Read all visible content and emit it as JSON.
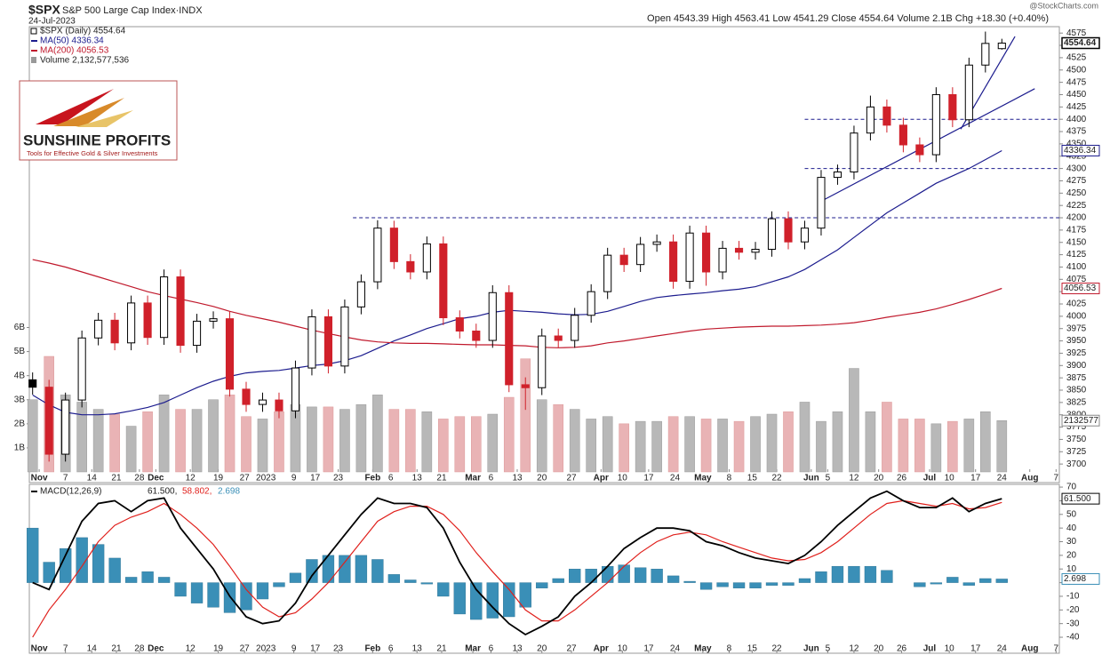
{
  "chart_data": [
    {
      "type": "candlestick",
      "title": "$SPX",
      "subtitle": "S&P 500 Large Cap Index·INDX",
      "date": "24-Jul-2023",
      "source": "@StockCharts.com",
      "quote": "Open 4543.39  High 4563.41  Low 4541.29  Close 4554.64  Volume 2.1B  Chg +18.30 (+0.40%)",
      "price_name": "$SPX (Daily) 4554.64",
      "logo": {
        "title": "SUNSHINE PROFITS",
        "tagline": "Tools for Effective Gold & Silver Investments"
      },
      "open": [
        3871,
        3856,
        3720,
        3830,
        3956,
        3992,
        3946,
        4027,
        3957,
        4080,
        3941,
        3990,
        3995,
        3852,
        3821,
        3830,
        3808,
        3895,
        3999,
        3899,
        4019,
        4070,
        4179,
        4111,
        4090,
        4147,
        3997,
        3970,
        3951,
        4048,
        3861,
        3855,
        3960,
        3951,
        4002,
        4050,
        4124,
        4105,
        4146,
        4151,
        4071,
        4169,
        4090,
        4138,
        4130,
        4136,
        4198,
        4151,
        4179,
        4282,
        4293,
        4372,
        4425,
        4388,
        4348,
        4328,
        4450,
        4399,
        4510,
        4543.39
      ],
      "high": [
        3886,
        3871,
        3845,
        3971,
        4007,
        4007,
        4042,
        4042,
        4095,
        4095,
        4005,
        4010,
        4010,
        3867,
        3845,
        3845,
        3910,
        4014,
        4014,
        4034,
        4085,
        4195,
        4194,
        4126,
        4162,
        4162,
        4012,
        3985,
        4063,
        4063,
        3876,
        3975,
        3975,
        4017,
        4065,
        4139,
        4139,
        4161,
        4166,
        4166,
        4184,
        4184,
        4153,
        4153,
        4151,
        4213,
        4213,
        4194,
        4297,
        4308,
        4387,
        4448,
        4440,
        4403,
        4363,
        4465,
        4465,
        4525,
        4578,
        4563.41
      ],
      "low": [
        3841,
        3705,
        3705,
        3815,
        3941,
        3931,
        3931,
        3942,
        3942,
        3926,
        3926,
        3975,
        3837,
        3806,
        3806,
        3793,
        3793,
        3880,
        3884,
        3884,
        4004,
        4055,
        4096,
        4075,
        4075,
        3982,
        3955,
        3936,
        3936,
        3846,
        3810,
        3840,
        3936,
        3936,
        3987,
        4035,
        4090,
        4090,
        4131,
        4056,
        4056,
        4062,
        4075,
        4115,
        4115,
        4121,
        4136,
        4136,
        4164,
        4267,
        4278,
        4357,
        4373,
        4333,
        4313,
        4313,
        4384,
        4384,
        4495,
        4541.29
      ],
      "close": [
        3856,
        3720,
        3830,
        3956,
        3992,
        3946,
        4027,
        3957,
        4080,
        3941,
        3990,
        3995,
        3852,
        3821,
        3830,
        3808,
        3895,
        3999,
        3899,
        4019,
        4070,
        4179,
        4111,
        4090,
        4147,
        3997,
        3970,
        3951,
        4048,
        3861,
        3855,
        3960,
        3951,
        4002,
        4050,
        4124,
        4105,
        4146,
        4151,
        4071,
        4169,
        4090,
        4138,
        4130,
        4136,
        4198,
        4151,
        4179,
        4282,
        4293,
        4372,
        4425,
        4388,
        4348,
        4328,
        4450,
        4399,
        4510,
        4554,
        4554.64
      ],
      "series": [
        {
          "name": "MA(50) 4336.34",
          "color": "#1c1c8e",
          "values": [
            3840,
            3820,
            3805,
            3800,
            3800,
            3802,
            3808,
            3815,
            3825,
            3840,
            3855,
            3868,
            3878,
            3885,
            3888,
            3890,
            3895,
            3900,
            3903,
            3910,
            3920,
            3935,
            3950,
            3962,
            3975,
            3985,
            3995,
            4000,
            4008,
            4012,
            4010,
            4008,
            4005,
            4003,
            4004,
            4010,
            4020,
            4030,
            4038,
            4042,
            4045,
            4048,
            4052,
            4055,
            4060,
            4070,
            4080,
            4095,
            4115,
            4135,
            4160,
            4185,
            4210,
            4230,
            4250,
            4270,
            4285,
            4300,
            4318,
            4336.34
          ]
        },
        {
          "name": "MA(200) 4056.53",
          "color": "#c0192c",
          "values": [
            4115,
            4108,
            4100,
            4090,
            4080,
            4070,
            4060,
            4050,
            4042,
            4035,
            4028,
            4020,
            4010,
            4002,
            3995,
            3988,
            3980,
            3972,
            3965,
            3958,
            3952,
            3948,
            3946,
            3945,
            3945,
            3944,
            3943,
            3942,
            3942,
            3941,
            3940,
            3937,
            3936,
            3937,
            3940,
            3946,
            3950,
            3955,
            3960,
            3965,
            3970,
            3974,
            3976,
            3978,
            3979,
            3980,
            3980,
            3981,
            3982,
            3984,
            3987,
            3992,
            3998,
            4003,
            4008,
            4015,
            4024,
            4034,
            4045,
            4056.53
          ]
        },
        {
          "name": "Volume 2,132,577,536",
          "axis": "y2",
          "values": [
            3.0,
            4.8,
            3.2,
            2.9,
            2.6,
            2.4,
            1.9,
            2.5,
            3.2,
            2.6,
            2.6,
            3.0,
            3.2,
            2.3,
            2.2,
            2.5,
            2.8,
            2.7,
            2.7,
            2.6,
            2.8,
            3.2,
            2.6,
            2.6,
            2.5,
            2.2,
            2.3,
            2.3,
            2.4,
            3.1,
            4.7,
            3.0,
            2.8,
            2.6,
            2.2,
            2.3,
            2.0,
            2.1,
            2.1,
            2.3,
            2.3,
            2.2,
            2.2,
            2.1,
            2.3,
            2.4,
            2.5,
            2.9,
            2.1,
            2.5,
            4.3,
            2.5,
            2.9,
            2.2,
            2.2,
            2.0,
            2.1,
            2.2,
            2.5,
            2.132577
          ]
        }
      ],
      "last_value_labels": [
        "4554.64",
        "4336.34",
        "4056.53",
        "2132577"
      ],
      "xlim": [
        -0.2,
        62.5
      ],
      "xticks": [
        {
          "value": 0.4,
          "label": "Nov"
        },
        {
          "value": 2.0,
          "label": "7"
        },
        {
          "value": 3.6,
          "label": "14"
        },
        {
          "value": 5.1,
          "label": "21"
        },
        {
          "value": 6.5,
          "label": "28"
        },
        {
          "value": 7.5,
          "label": "Dec"
        },
        {
          "value": 9.6,
          "label": "12"
        },
        {
          "value": 11.3,
          "label": "19"
        },
        {
          "value": 12.9,
          "label": "27"
        },
        {
          "value": 14.2,
          "label": "2023"
        },
        {
          "value": 15.9,
          "label": "9"
        },
        {
          "value": 17.2,
          "label": "17"
        },
        {
          "value": 18.6,
          "label": "23"
        },
        {
          "value": 20.7,
          "label": "Feb"
        },
        {
          "value": 21.8,
          "label": "6"
        },
        {
          "value": 23.4,
          "label": "13"
        },
        {
          "value": 24.9,
          "label": "21"
        },
        {
          "value": 26.8,
          "label": "Mar"
        },
        {
          "value": 27.9,
          "label": "6"
        },
        {
          "value": 29.5,
          "label": "13"
        },
        {
          "value": 31.0,
          "label": "20"
        },
        {
          "value": 32.8,
          "label": "27"
        },
        {
          "value": 34.6,
          "label": "Apr"
        },
        {
          "value": 35.9,
          "label": "10"
        },
        {
          "value": 37.5,
          "label": "17"
        },
        {
          "value": 39.1,
          "label": "24"
        },
        {
          "value": 40.8,
          "label": "May"
        },
        {
          "value": 42.4,
          "label": "8"
        },
        {
          "value": 43.8,
          "label": "15"
        },
        {
          "value": 45.3,
          "label": "22"
        },
        {
          "value": 47.4,
          "label": "Jun"
        },
        {
          "value": 48.4,
          "label": "5"
        },
        {
          "value": 50.0,
          "label": "12"
        },
        {
          "value": 51.5,
          "label": "20"
        },
        {
          "value": 52.9,
          "label": "26"
        },
        {
          "value": 54.6,
          "label": "Jul"
        },
        {
          "value": 55.8,
          "label": "10"
        },
        {
          "value": 57.4,
          "label": "17"
        },
        {
          "value": 59.0,
          "label": "24"
        },
        {
          "value": 60.7,
          "label": "Aug"
        },
        {
          "value": 62.3,
          "label": "7"
        }
      ],
      "ylim": [
        3684,
        4588
      ],
      "yticks": [
        3700,
        3725,
        3750,
        3775,
        3800,
        3825,
        3850,
        3875,
        3900,
        3925,
        3950,
        3975,
        4000,
        4025,
        4050,
        4075,
        4100,
        4125,
        4150,
        4175,
        4200,
        4225,
        4250,
        4275,
        4300,
        4325,
        4350,
        4375,
        4400,
        4425,
        4450,
        4475,
        4500,
        4525,
        4550,
        4575
      ],
      "y2lim": [
        0,
        18.5
      ],
      "y2ticks": [
        {
          "value": 1,
          "label": "1B"
        },
        {
          "value": 2,
          "label": "2B"
        },
        {
          "value": 3,
          "label": "3B"
        },
        {
          "value": 4,
          "label": "4B"
        },
        {
          "value": 5,
          "label": "5B"
        },
        {
          "value": 6,
          "label": "6B"
        }
      ],
      "hlines": [
        {
          "value": 4200,
          "start": 19.5
        },
        {
          "value": 4300,
          "start": 47.0
        },
        {
          "value": 4400,
          "start": 47.0
        }
      ],
      "trendlines": [
        {
          "x": [
            47.8,
            61.0
          ],
          "y": [
            4230,
            4462
          ]
        },
        {
          "x": [
            56.5,
            59.8
          ],
          "y": [
            4380,
            4568
          ]
        }
      ]
    },
    {
      "type": "macd",
      "title": "MACD(12,26,9)",
      "series": [
        {
          "name": "61.500,",
          "color": "#000000",
          "values": [
            0,
            -5,
            20,
            45,
            58,
            60,
            52,
            60,
            62,
            40,
            25,
            10,
            -10,
            -25,
            -30,
            -28,
            -15,
            5,
            20,
            35,
            50,
            62,
            58,
            58,
            55,
            40,
            15,
            -5,
            -18,
            -30,
            -38,
            -32,
            -25,
            -10,
            0,
            12,
            25,
            33,
            40,
            40,
            38,
            30,
            27,
            22,
            18,
            16,
            14,
            20,
            30,
            42,
            52,
            62,
            67,
            60,
            55,
            55,
            62,
            52,
            58,
            61.5
          ]
        },
        {
          "name": "58.802,",
          "color": "#e0201c",
          "values": [
            -40,
            -20,
            -5,
            12,
            30,
            42,
            48,
            52,
            58,
            50,
            40,
            28,
            12,
            -5,
            -18,
            -25,
            -22,
            -12,
            0,
            15,
            30,
            45,
            52,
            56,
            56,
            50,
            38,
            22,
            8,
            -5,
            -20,
            -28,
            -28,
            -20,
            -10,
            0,
            12,
            22,
            30,
            35,
            37,
            35,
            30,
            26,
            22,
            18,
            16,
            17,
            22,
            30,
            40,
            50,
            58,
            60,
            58,
            56,
            58,
            54,
            55,
            58.802
          ]
        },
        {
          "name": "2.698",
          "color": "#3a8fb7",
          "values": [
            40,
            15,
            25,
            33,
            28,
            18,
            4,
            8,
            4,
            -10,
            -15,
            -18,
            -22,
            -20,
            -12,
            -3,
            7,
            17,
            20,
            20,
            20,
            17,
            6,
            2,
            -1,
            -10,
            -23,
            -27,
            -26,
            -25,
            -18,
            -4,
            3,
            10,
            10,
            12,
            13,
            11,
            10,
            5,
            1,
            -5,
            -3,
            -4,
            -4,
            -2,
            -2,
            3,
            8,
            12,
            12,
            12,
            9,
            0,
            -3,
            -1,
            4,
            -2,
            3,
            2.698
          ]
        }
      ],
      "last_value_labels": [
        "61.500",
        "2.698"
      ],
      "xlim": [
        -0.2,
        62.5
      ],
      "xticks": [
        {
          "value": 0.4,
          "label": "Nov"
        },
        {
          "value": 2.0,
          "label": "7"
        },
        {
          "value": 3.6,
          "label": "14"
        },
        {
          "value": 5.1,
          "label": "21"
        },
        {
          "value": 6.5,
          "label": "28"
        },
        {
          "value": 7.5,
          "label": "Dec"
        },
        {
          "value": 9.6,
          "label": "12"
        },
        {
          "value": 11.3,
          "label": "19"
        },
        {
          "value": 12.9,
          "label": "27"
        },
        {
          "value": 14.2,
          "label": "2023"
        },
        {
          "value": 15.9,
          "label": "9"
        },
        {
          "value": 17.2,
          "label": "17"
        },
        {
          "value": 18.6,
          "label": "23"
        },
        {
          "value": 20.7,
          "label": "Feb"
        },
        {
          "value": 21.8,
          "label": "6"
        },
        {
          "value": 23.4,
          "label": "13"
        },
        {
          "value": 24.9,
          "label": "21"
        },
        {
          "value": 26.8,
          "label": "Mar"
        },
        {
          "value": 27.9,
          "label": "6"
        },
        {
          "value": 29.5,
          "label": "13"
        },
        {
          "value": 31.0,
          "label": "20"
        },
        {
          "value": 32.8,
          "label": "27"
        },
        {
          "value": 34.6,
          "label": "Apr"
        },
        {
          "value": 35.9,
          "label": "10"
        },
        {
          "value": 37.5,
          "label": "17"
        },
        {
          "value": 39.1,
          "label": "24"
        },
        {
          "value": 40.8,
          "label": "May"
        },
        {
          "value": 42.4,
          "label": "8"
        },
        {
          "value": 43.8,
          "label": "15"
        },
        {
          "value": 45.3,
          "label": "22"
        },
        {
          "value": 47.4,
          "label": "Jun"
        },
        {
          "value": 48.4,
          "label": "5"
        },
        {
          "value": 50.0,
          "label": "12"
        },
        {
          "value": 51.5,
          "label": "20"
        },
        {
          "value": 52.9,
          "label": "26"
        },
        {
          "value": 54.6,
          "label": "Jul"
        },
        {
          "value": 55.8,
          "label": "10"
        },
        {
          "value": 57.4,
          "label": "17"
        },
        {
          "value": 59.0,
          "label": "24"
        },
        {
          "value": 60.7,
          "label": "Aug"
        },
        {
          "value": 62.3,
          "label": "7"
        }
      ],
      "ylim": [
        -51.7,
        72
      ],
      "yticks": [
        -40,
        -30,
        -20,
        -10,
        0,
        10,
        20,
        30,
        40,
        50,
        60,
        70
      ]
    }
  ]
}
